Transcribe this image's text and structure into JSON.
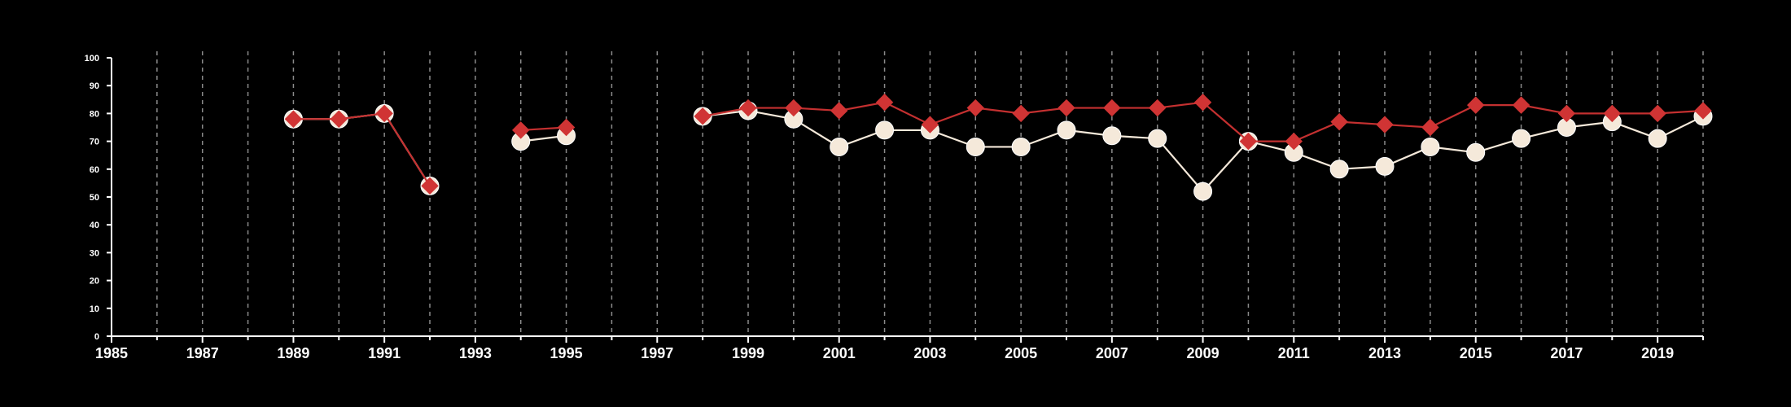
{
  "chart_data": {
    "type": "line",
    "title": "",
    "xlabel": "",
    "ylabel": "",
    "xlim": [
      1985,
      2020
    ],
    "ylim": [
      0,
      100
    ],
    "yticks": [
      0,
      10,
      20,
      30,
      40,
      50,
      60,
      70,
      80,
      90,
      100
    ],
    "xticks": [
      1985,
      1987,
      1989,
      1991,
      1993,
      1995,
      1997,
      1999,
      2001,
      2003,
      2005,
      2007,
      2009,
      2011,
      2013,
      2015,
      2017,
      2019
    ],
    "grid": "vertical dashed lines at every year",
    "background": "#000000",
    "series": [
      {
        "marker": "circle",
        "color": "#f5e9da",
        "line_color": "#f5e9da",
        "points": [
          [
            1989,
            78
          ],
          [
            1990,
            78
          ],
          [
            1991,
            80
          ],
          [
            1992,
            54
          ],
          null,
          [
            1994,
            70
          ],
          [
            1995,
            72
          ],
          null,
          [
            1998,
            79
          ],
          [
            1999,
            81
          ],
          [
            2000,
            78
          ],
          [
            2001,
            68
          ],
          [
            2002,
            74
          ],
          [
            2003,
            74
          ],
          [
            2004,
            68
          ],
          [
            2005,
            68
          ],
          [
            2006,
            74
          ],
          [
            2007,
            72
          ],
          [
            2008,
            71
          ],
          [
            2009,
            52
          ],
          [
            2010,
            70
          ],
          [
            2011,
            66
          ],
          [
            2012,
            60
          ],
          [
            2013,
            61
          ],
          [
            2014,
            68
          ],
          [
            2015,
            66
          ],
          [
            2016,
            71
          ],
          [
            2017,
            75
          ],
          [
            2018,
            77
          ],
          [
            2019,
            71
          ],
          [
            2020,
            79
          ]
        ]
      },
      {
        "marker": "diamond",
        "color": "#d03434",
        "line_color": "#c43030",
        "points": [
          [
            1989,
            78
          ],
          [
            1990,
            78
          ],
          [
            1991,
            80
          ],
          [
            1992,
            54
          ],
          null,
          [
            1994,
            74
          ],
          [
            1995,
            75
          ],
          null,
          [
            1998,
            79
          ],
          [
            1999,
            82
          ],
          [
            2000,
            82
          ],
          [
            2001,
            81
          ],
          [
            2002,
            84
          ],
          [
            2003,
            76
          ],
          [
            2004,
            82
          ],
          [
            2005,
            80
          ],
          [
            2006,
            82
          ],
          [
            2007,
            82
          ],
          [
            2008,
            82
          ],
          [
            2009,
            84
          ],
          [
            2010,
            70
          ],
          [
            2011,
            70
          ],
          [
            2012,
            77
          ],
          [
            2013,
            76
          ],
          [
            2014,
            75
          ],
          [
            2015,
            83
          ],
          [
            2016,
            83
          ],
          [
            2017,
            80
          ],
          [
            2018,
            80
          ],
          [
            2019,
            80
          ],
          [
            2020,
            81
          ]
        ]
      }
    ]
  }
}
